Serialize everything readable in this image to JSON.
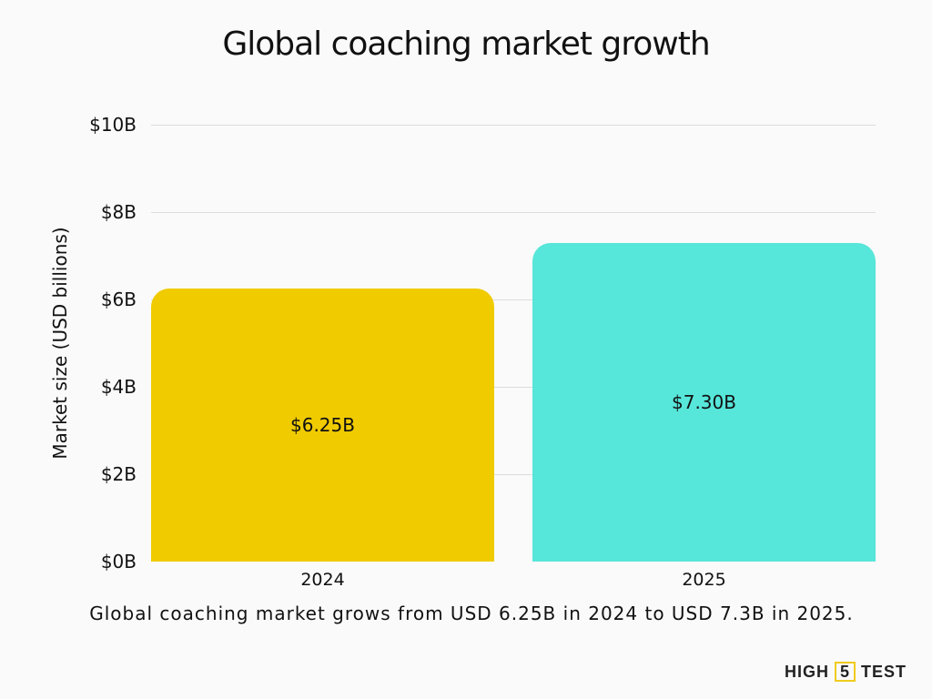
{
  "chart_data": {
    "type": "bar",
    "title": "Global coaching market growth",
    "xlabel": "",
    "ylabel": "Market size (USD billions)",
    "categories": [
      "2024",
      "2025"
    ],
    "values": [
      6.25,
      7.3
    ],
    "value_labels": [
      "$6.25B",
      "$7.30B"
    ],
    "colors": [
      "#f0cb00",
      "#57e6da"
    ],
    "ylim": [
      0,
      10
    ],
    "yticks": [
      0,
      2,
      4,
      6,
      8,
      10
    ],
    "ytick_labels": [
      "$0B",
      "$2B",
      "$4B",
      "$6B",
      "$8B",
      "$10B"
    ],
    "grid": true,
    "legend": null,
    "caption": "Global coaching market grows from USD 6.25B in 2024 to USD 7.3B in 2025."
  },
  "branding": {
    "logo_left": "HIGH",
    "logo_mid": "5",
    "logo_right": "TEST",
    "logo_accent": "#f0cb1e"
  }
}
